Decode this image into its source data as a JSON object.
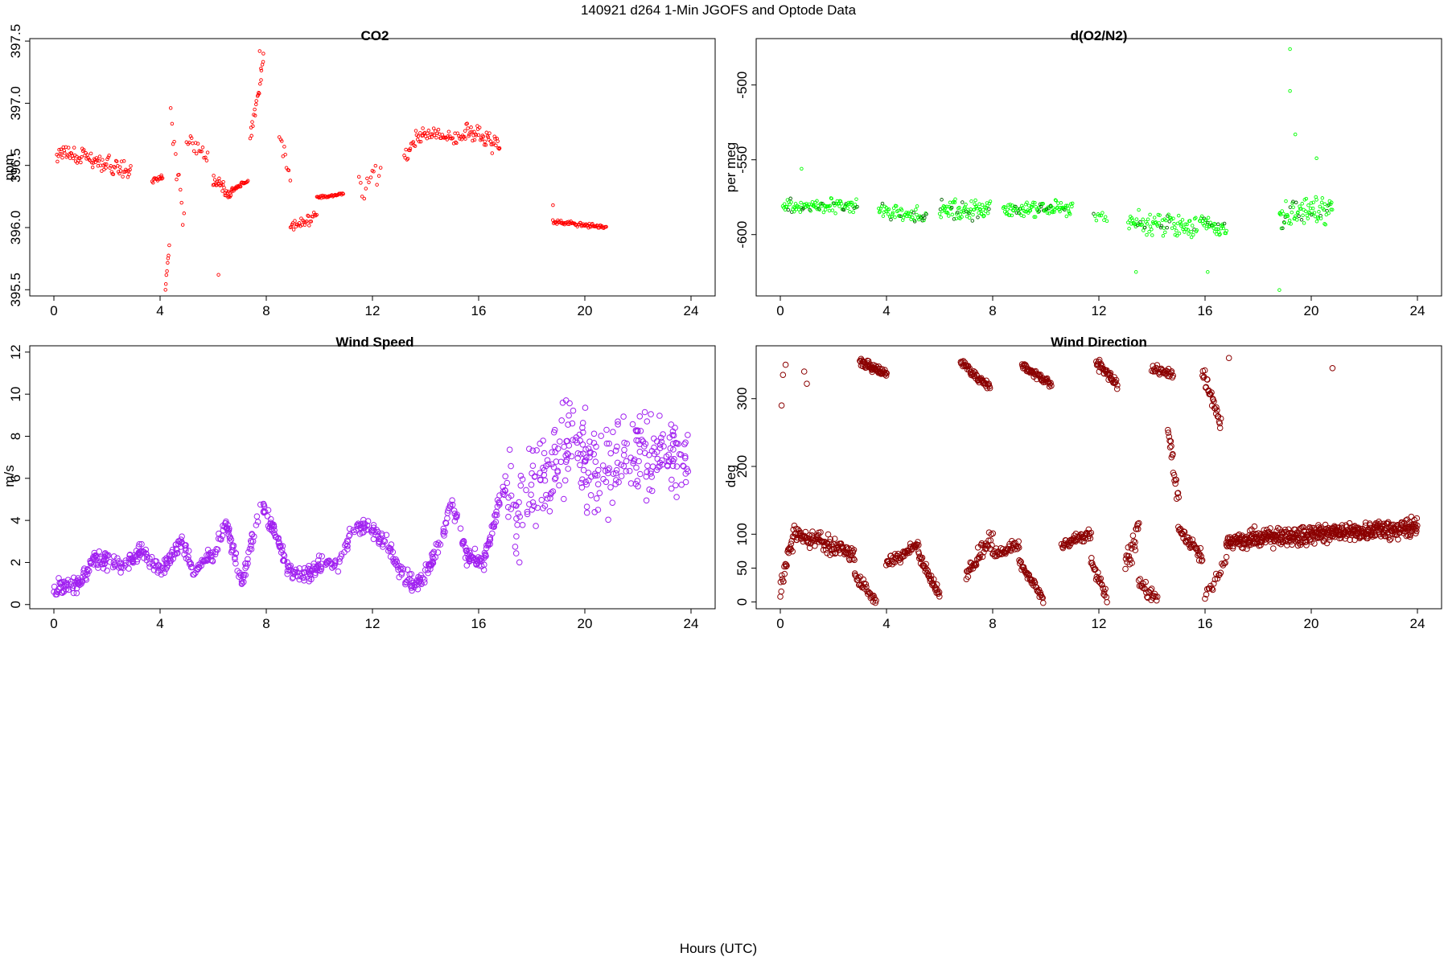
{
  "figure": {
    "title": "140921   d264   1-Min  JGOFS and Optode Data",
    "xlabel": "Hours (UTC)"
  },
  "chart_data": [
    {
      "id": "co2",
      "type": "scatter",
      "title": "CO2",
      "ylabel": "ppm",
      "xlabel": "",
      "xlim": [
        0,
        24
      ],
      "ylim": [
        395.45,
        397.52
      ],
      "xticks": [
        0,
        4,
        8,
        12,
        16,
        20,
        24
      ],
      "yticks": [
        395.5,
        396.0,
        396.5,
        397.0,
        397.5
      ],
      "ytick_labels": [
        "395.5",
        "396.0",
        "396.5",
        "397.0",
        "397.5"
      ],
      "color": "#ff0000",
      "marker_size": "small",
      "segments": [
        {
          "x0": 0.1,
          "x1": 2.9,
          "y0": 396.62,
          "y1": 396.45,
          "noise": 0.12,
          "n": 90
        },
        {
          "x0": 3.7,
          "x1": 4.1,
          "y0": 396.38,
          "y1": 396.4,
          "noise": 0.03,
          "n": 14
        },
        {
          "x0": 4.2,
          "x1": 4.35,
          "y0": 395.5,
          "y1": 395.85,
          "noise": 0.05,
          "n": 8
        },
        {
          "x0": 4.4,
          "x1": 4.9,
          "y0": 396.85,
          "y1": 396.05,
          "noise": 0.2,
          "n": 12
        },
        {
          "x0": 5.0,
          "x1": 5.8,
          "y0": 396.72,
          "y1": 396.55,
          "noise": 0.1,
          "n": 18
        },
        {
          "x0": 6.0,
          "x1": 6.7,
          "y0": 396.4,
          "y1": 396.25,
          "noise": 0.08,
          "n": 30
        },
        {
          "x0": 6.7,
          "x1": 7.3,
          "y0": 396.3,
          "y1": 396.38,
          "noise": 0.03,
          "n": 26
        },
        {
          "x0": 7.4,
          "x1": 7.9,
          "y0": 396.7,
          "y1": 397.35,
          "noise": 0.12,
          "n": 20
        },
        {
          "x0": 8.5,
          "x1": 8.9,
          "y0": 396.75,
          "y1": 396.4,
          "noise": 0.1,
          "n": 10
        },
        {
          "x0": 8.9,
          "x1": 9.9,
          "y0": 396.0,
          "y1": 396.1,
          "noise": 0.08,
          "n": 30
        },
        {
          "x0": 9.9,
          "x1": 10.9,
          "y0": 396.24,
          "y1": 396.27,
          "noise": 0.02,
          "n": 34
        },
        {
          "x0": 11.5,
          "x1": 12.3,
          "y0": 396.3,
          "y1": 396.45,
          "noise": 0.18,
          "n": 14
        },
        {
          "x0": 13.2,
          "x1": 13.9,
          "y0": 396.55,
          "y1": 396.8,
          "noise": 0.12,
          "n": 22
        },
        {
          "x0": 13.9,
          "x1": 15.5,
          "y0": 396.75,
          "y1": 396.72,
          "noise": 0.08,
          "n": 45
        },
        {
          "x0": 15.5,
          "x1": 16.8,
          "y0": 396.8,
          "y1": 396.65,
          "noise": 0.1,
          "n": 45
        },
        {
          "x0": 18.8,
          "x1": 20.8,
          "y0": 396.05,
          "y1": 396.0,
          "noise": 0.03,
          "n": 70
        }
      ],
      "outliers": [
        [
          6.2,
          395.62
        ],
        [
          7.75,
          397.42
        ],
        [
          7.8,
          397.28
        ],
        [
          4.05,
          396.42
        ],
        [
          18.8,
          396.18
        ]
      ]
    },
    {
      "id": "do2n2",
      "type": "scatter",
      "title": "d(O2/N2)",
      "ylabel": "per meg",
      "xlabel": "",
      "xlim": [
        0,
        24
      ],
      "ylim": [
        -641,
        -469
      ],
      "xticks": [
        0,
        4,
        8,
        12,
        16,
        20,
        24
      ],
      "yticks": [
        -500,
        -550,
        -600
      ],
      "ytick_labels": [
        "-500",
        "-550",
        "-600"
      ],
      "color": "#00ff00",
      "accent_color": "#006400",
      "marker_size": "small",
      "segments": [
        {
          "x0": 0.1,
          "x1": 2.9,
          "y0": -582,
          "y1": -580,
          "noise": 8,
          "n": 100
        },
        {
          "x0": 3.7,
          "x1": 5.5,
          "y0": -583,
          "y1": -588,
          "noise": 8,
          "n": 60
        },
        {
          "x0": 6.0,
          "x1": 7.9,
          "y0": -585,
          "y1": -583,
          "noise": 10,
          "n": 80
        },
        {
          "x0": 8.4,
          "x1": 11.0,
          "y0": -584,
          "y1": -582,
          "noise": 8,
          "n": 100
        },
        {
          "x0": 11.8,
          "x1": 12.3,
          "y0": -585,
          "y1": -590,
          "noise": 8,
          "n": 10
        },
        {
          "x0": 13.1,
          "x1": 15.7,
          "y0": -592,
          "y1": -594,
          "noise": 11,
          "n": 90
        },
        {
          "x0": 15.8,
          "x1": 16.8,
          "y0": -590,
          "y1": -598,
          "noise": 8,
          "n": 40
        },
        {
          "x0": 18.8,
          "x1": 20.8,
          "y0": -588,
          "y1": -582,
          "noise": 14,
          "n": 80
        }
      ],
      "outliers": [
        [
          19.2,
          -476
        ],
        [
          19.2,
          -504
        ],
        [
          19.4,
          -533
        ],
        [
          18.8,
          -637
        ],
        [
          20.2,
          -549
        ],
        [
          0.8,
          -556
        ],
        [
          16.1,
          -625
        ],
        [
          13.4,
          -625
        ]
      ]
    },
    {
      "id": "wind_speed",
      "type": "scatter",
      "title": "Wind Speed",
      "ylabel": "m/s",
      "xlabel": "",
      "xlim": [
        0,
        24
      ],
      "ylim": [
        -0.2,
        12.3
      ],
      "xticks": [
        0,
        4,
        8,
        12,
        16,
        20,
        24
      ],
      "yticks": [
        0,
        2,
        4,
        6,
        8,
        10,
        12
      ],
      "ytick_labels": [
        "0",
        "2",
        "4",
        "6",
        "8",
        "10",
        "12"
      ],
      "color": "#a020f0",
      "marker_size": "large",
      "profile": [
        [
          0,
          0.8
        ],
        [
          1,
          1.0
        ],
        [
          1.5,
          2.2
        ],
        [
          2.5,
          1.8
        ],
        [
          3.3,
          2.5
        ],
        [
          4.0,
          1.6
        ],
        [
          4.8,
          3.0
        ],
        [
          5.3,
          1.6
        ],
        [
          6.0,
          2.5
        ],
        [
          6.5,
          3.8
        ],
        [
          7.1,
          1.0
        ],
        [
          7.8,
          4.8
        ],
        [
          8.3,
          3.5
        ],
        [
          8.9,
          1.5
        ],
        [
          9.5,
          1.4
        ],
        [
          10.2,
          2.0
        ],
        [
          10.7,
          2.0
        ],
        [
          11.4,
          3.8
        ],
        [
          12.0,
          3.5
        ],
        [
          12.6,
          2.8
        ],
        [
          13.2,
          1.2
        ],
        [
          13.8,
          1.0
        ],
        [
          14.3,
          2.2
        ],
        [
          15.0,
          4.8
        ],
        [
          15.6,
          2.2
        ],
        [
          16.2,
          2.0
        ],
        [
          16.9,
          5.5
        ],
        [
          17.5,
          4.5
        ],
        [
          18.5,
          6.5
        ],
        [
          19.5,
          8.0
        ],
        [
          20.5,
          6.0
        ],
        [
          21.5,
          7.5
        ],
        [
          22.5,
          7.0
        ],
        [
          24,
          7.0
        ]
      ],
      "noise_low": 0.35,
      "noise_high": 1.7,
      "n": 1000
    },
    {
      "id": "wind_direction",
      "type": "scatter",
      "title": "Wind Direction",
      "ylabel": "deg",
      "xlabel": "",
      "xlim": [
        0,
        24
      ],
      "ylim": [
        -10,
        378
      ],
      "xticks": [
        0,
        4,
        8,
        12,
        16,
        20,
        24
      ],
      "yticks": [
        0,
        50,
        100,
        200,
        300
      ],
      "ytick_labels": [
        "0",
        "50",
        "100",
        "200",
        "300"
      ],
      "color": "#8b0000",
      "marker_size": "large",
      "segments": [
        {
          "x0": 0.0,
          "x1": 0.6,
          "y0": 20,
          "y1": 115,
          "noise": 25,
          "n": 30
        },
        {
          "x0": 0.6,
          "x1": 2.8,
          "y0": 100,
          "y1": 70,
          "noise": 20,
          "n": 110
        },
        {
          "x0": 2.8,
          "x1": 3.6,
          "y0": 40,
          "y1": 5,
          "noise": 15,
          "n": 30
        },
        {
          "x0": 3.0,
          "x1": 4.0,
          "y0": 355,
          "y1": 335,
          "noise": 10,
          "n": 60
        },
        {
          "x0": 4.0,
          "x1": 5.2,
          "y0": 55,
          "y1": 85,
          "noise": 12,
          "n": 50
        },
        {
          "x0": 5.2,
          "x1": 6.0,
          "y0": 70,
          "y1": 10,
          "noise": 12,
          "n": 40
        },
        {
          "x0": 6.8,
          "x1": 7.9,
          "y0": 355,
          "y1": 315,
          "noise": 10,
          "n": 50
        },
        {
          "x0": 7.0,
          "x1": 8.0,
          "y0": 40,
          "y1": 95,
          "noise": 20,
          "n": 40
        },
        {
          "x0": 8.0,
          "x1": 9.0,
          "y0": 70,
          "y1": 85,
          "noise": 12,
          "n": 40
        },
        {
          "x0": 9.0,
          "x1": 9.9,
          "y0": 60,
          "y1": 5,
          "noise": 12,
          "n": 40
        },
        {
          "x0": 9.1,
          "x1": 10.2,
          "y0": 350,
          "y1": 320,
          "noise": 10,
          "n": 50
        },
        {
          "x0": 10.6,
          "x1": 11.7,
          "y0": 85,
          "y1": 100,
          "noise": 12,
          "n": 50
        },
        {
          "x0": 11.7,
          "x1": 12.3,
          "y0": 60,
          "y1": 5,
          "noise": 12,
          "n": 25
        },
        {
          "x0": 11.9,
          "x1": 12.7,
          "y0": 355,
          "y1": 320,
          "noise": 12,
          "n": 40
        },
        {
          "x0": 13.0,
          "x1": 13.5,
          "y0": 50,
          "y1": 110,
          "noise": 30,
          "n": 25
        },
        {
          "x0": 13.5,
          "x1": 14.2,
          "y0": 30,
          "y1": 5,
          "noise": 15,
          "n": 25
        },
        {
          "x0": 14.0,
          "x1": 14.8,
          "y0": 345,
          "y1": 335,
          "noise": 10,
          "n": 30
        },
        {
          "x0": 14.6,
          "x1": 15.0,
          "y0": 250,
          "y1": 150,
          "noise": 25,
          "n": 20
        },
        {
          "x0": 15.0,
          "x1": 15.9,
          "y0": 110,
          "y1": 65,
          "noise": 15,
          "n": 40
        },
        {
          "x0": 15.9,
          "x1": 16.6,
          "y0": 340,
          "y1": 260,
          "noise": 20,
          "n": 30
        },
        {
          "x0": 16.0,
          "x1": 16.8,
          "y0": 10,
          "y1": 60,
          "noise": 20,
          "n": 20
        },
        {
          "x0": 16.8,
          "x1": 24.0,
          "y0": 90,
          "y1": 110,
          "noise": 20,
          "n": 500
        }
      ],
      "outliers": [
        [
          0.05,
          290
        ],
        [
          0.1,
          335
        ],
        [
          0.2,
          350
        ],
        [
          0.9,
          340
        ],
        [
          1.0,
          322
        ],
        [
          20.8,
          345
        ],
        [
          16.9,
          360
        ]
      ]
    }
  ]
}
